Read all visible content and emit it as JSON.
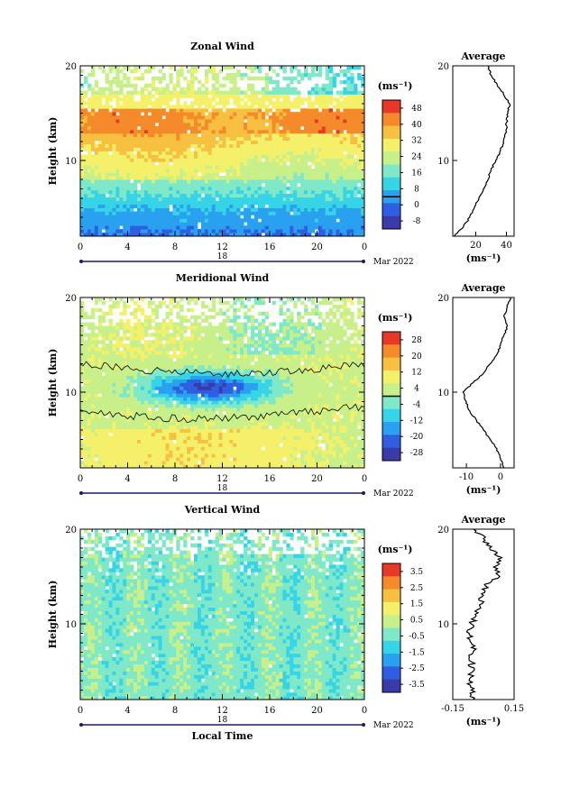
{
  "chart_data": [
    {
      "type": "heatmap",
      "title": "Zonal Wind",
      "ylabel": "Height (km)",
      "xlabel": "",
      "xticks": [
        "0",
        "4",
        "8",
        "12",
        "16",
        "20",
        "0"
      ],
      "xlim": [
        0,
        24
      ],
      "yticks": [
        "10",
        "20"
      ],
      "ylim": [
        2,
        20
      ],
      "date_day": "18",
      "date_label": "Mar 2022",
      "colorbar": {
        "unit": "(ms⁻¹)",
        "ticks": [
          "48",
          "40",
          "32",
          "24",
          "16",
          "8",
          "0",
          "-8"
        ],
        "range": [
          -8,
          52
        ]
      },
      "average": {
        "title": "Average",
        "unit": "(ms⁻¹)",
        "xticks": [
          "20",
          "40"
        ],
        "xlim": [
          5,
          45
        ],
        "heights": [
          2,
          3,
          4,
          5,
          6,
          7,
          8,
          9,
          10,
          11,
          12,
          13,
          14,
          15,
          16,
          17,
          18,
          19,
          20
        ],
        "values": [
          6,
          12,
          16,
          19,
          22,
          25,
          28,
          30,
          33,
          36,
          38,
          40,
          40,
          41,
          42,
          38,
          34,
          30,
          28
        ]
      }
    },
    {
      "type": "heatmap",
      "title": "Meridional Wind",
      "ylabel": "Height (km)",
      "xlabel": "",
      "xticks": [
        "0",
        "4",
        "8",
        "12",
        "16",
        "20",
        "0"
      ],
      "xlim": [
        0,
        24
      ],
      "yticks": [
        "10",
        "20"
      ],
      "ylim": [
        2,
        20
      ],
      "date_day": "18",
      "date_label": "Mar 2022",
      "colorbar": {
        "unit": "(ms⁻¹)",
        "ticks": [
          "28",
          "20",
          "12",
          "4",
          "-4",
          "-12",
          "-20",
          "-28"
        ],
        "range": [
          -32,
          32
        ]
      },
      "average": {
        "title": "Average",
        "unit": "(ms⁻¹)",
        "xticks": [
          "-10",
          "0"
        ],
        "xlim": [
          -14,
          4
        ],
        "heights": [
          2,
          3,
          4,
          5,
          6,
          7,
          8,
          9,
          10,
          11,
          12,
          13,
          14,
          15,
          16,
          17,
          18,
          19,
          20
        ],
        "values": [
          1,
          0,
          -1,
          -3,
          -5,
          -7,
          -9,
          -10,
          -11,
          -8,
          -5,
          -3,
          -1,
          0,
          1,
          2,
          1,
          2,
          3
        ]
      }
    },
    {
      "type": "heatmap",
      "title": "Vertical Wind",
      "ylabel": "Height (km)",
      "xlabel": "Local Time",
      "xticks": [
        "0",
        "4",
        "8",
        "12",
        "16",
        "20",
        "0"
      ],
      "xlim": [
        0,
        24
      ],
      "yticks": [
        "10",
        "20"
      ],
      "ylim": [
        2,
        20
      ],
      "date_day": "18",
      "date_label": "Mar 2022",
      "colorbar": {
        "unit": "(ms⁻¹)",
        "ticks": [
          "3.5",
          "2.5",
          "1.5",
          "0.5",
          "-0.5",
          "-1.5",
          "-2.5",
          "-3.5"
        ],
        "range": [
          -4,
          4
        ]
      },
      "average": {
        "title": "Average",
        "unit": "(ms⁻¹)",
        "xticks": [
          "-0.15",
          "0.15"
        ],
        "xlim": [
          -0.15,
          0.15
        ],
        "heights": [
          2,
          3,
          4,
          5,
          6,
          7,
          8,
          9,
          10,
          11,
          12,
          13,
          14,
          15,
          16,
          17,
          18,
          19,
          20
        ],
        "values": [
          -0.05,
          -0.06,
          -0.07,
          -0.05,
          -0.06,
          -0.05,
          -0.06,
          -0.07,
          -0.06,
          -0.04,
          -0.02,
          0.0,
          0.01,
          0.08,
          0.05,
          0.09,
          0.03,
          0.0,
          -0.05
        ]
      }
    }
  ]
}
